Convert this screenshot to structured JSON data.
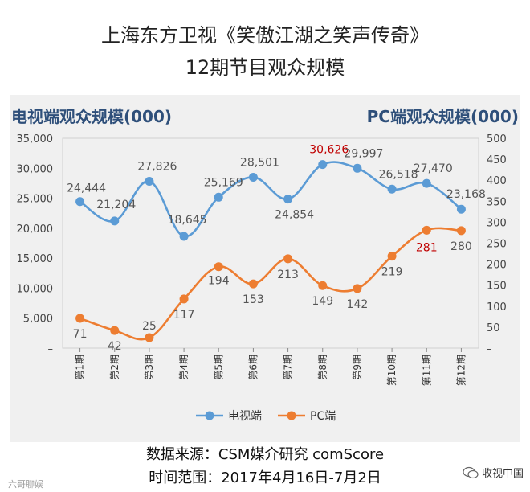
{
  "title_line1": "上海东方卫视《笑傲江湖之笑声传奇》",
  "title_line2": "12期节目观众规模",
  "source_line1": "数据来源：CSM媒介研究 comScore",
  "source_line2": "时间范围：2017年4月16日-7月2日",
  "watermark_left": "六哥聊娱",
  "watermark_right": "收视中国",
  "colors": {
    "tv": "#5b9bd5",
    "pc": "#ed7d31",
    "highlight": "#c00000",
    "header": "#2e4f7a"
  },
  "chart_data": {
    "type": "line",
    "categories": [
      "第1期",
      "第2期",
      "第3期",
      "第4期",
      "第5期",
      "第6期",
      "第7期",
      "第8期",
      "第9期",
      "第10期",
      "第11期",
      "第12期"
    ],
    "y_left_label": "电视端观众规模(000)",
    "y_right_label": "PC端观众规模(000)",
    "y_left_range": [
      0,
      35000
    ],
    "y_left_ticks": [
      "–",
      "5,000",
      "10,000",
      "15,000",
      "20,000",
      "25,000",
      "30,000",
      "35,000"
    ],
    "y_right_range": [
      0,
      500
    ],
    "y_right_ticks": [
      "–",
      "50",
      "100",
      "150",
      "200",
      "250",
      "300",
      "350",
      "400",
      "450",
      "500"
    ],
    "series": [
      {
        "name": "电视端",
        "axis": "left",
        "values": [
          24444,
          21204,
          27826,
          18645,
          25169,
          28501,
          24854,
          30626,
          29997,
          26518,
          27470,
          23168
        ],
        "labels": [
          "24,444",
          "21,204",
          "27,826",
          "18,645",
          "25,169",
          "28,501",
          "24,854",
          "30,626",
          "29,997",
          "26,518",
          "27,470",
          "23,168"
        ]
      },
      {
        "name": "PC端",
        "axis": "right",
        "values": [
          71,
          42,
          25,
          117,
          194,
          153,
          213,
          149,
          142,
          219,
          281,
          280
        ],
        "labels": [
          "71",
          "42",
          "25",
          "117",
          "194",
          "153",
          "213",
          "149",
          "142",
          "219",
          "281",
          "280"
        ]
      }
    ],
    "legend": {
      "position": "bottom",
      "items": [
        "电视端",
        "PC端"
      ]
    }
  }
}
